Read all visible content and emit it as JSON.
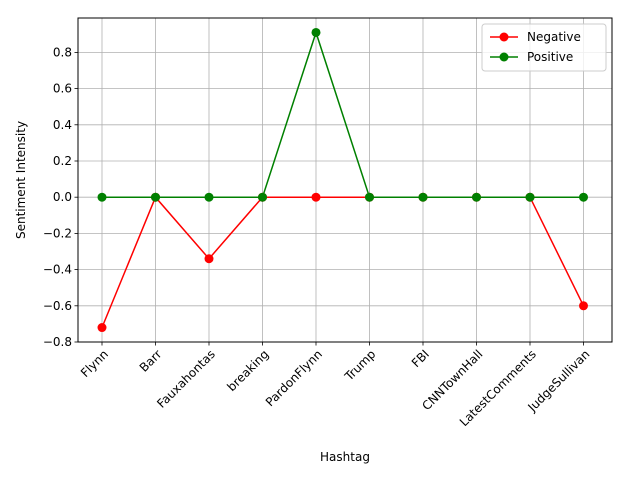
{
  "chart_data": {
    "type": "line",
    "categories": [
      "Flynn",
      "Barr",
      "Fauxahontas",
      "breaking",
      "PardonFlynn",
      "Trump",
      "FBI",
      "CNNTownHall",
      "LatestComments",
      "JudgeSullivan"
    ],
    "series": [
      {
        "name": "Negative",
        "color": "#ff0000",
        "marker": "circle",
        "values": [
          -0.72,
          0.0,
          -0.34,
          0.0,
          0.0,
          0.0,
          0.0,
          0.0,
          0.0,
          -0.6
        ]
      },
      {
        "name": "Positive",
        "color": "#008000",
        "marker": "circle",
        "values": [
          0.0,
          0.0,
          0.0,
          0.0,
          0.91,
          0.0,
          0.0,
          0.0,
          0.0,
          0.0
        ]
      }
    ],
    "xlabel": "Hashtag",
    "ylabel": "Sentiment Intensity",
    "ylim": [
      -0.8,
      0.99
    ],
    "yticks": [
      "−0.8",
      "−0.6",
      "−0.4",
      "−0.2",
      "0.0",
      "0.2",
      "0.4",
      "0.6",
      "0.8"
    ],
    "grid": true,
    "legend_position": "top-right",
    "xtick_rotation_deg": 45
  }
}
